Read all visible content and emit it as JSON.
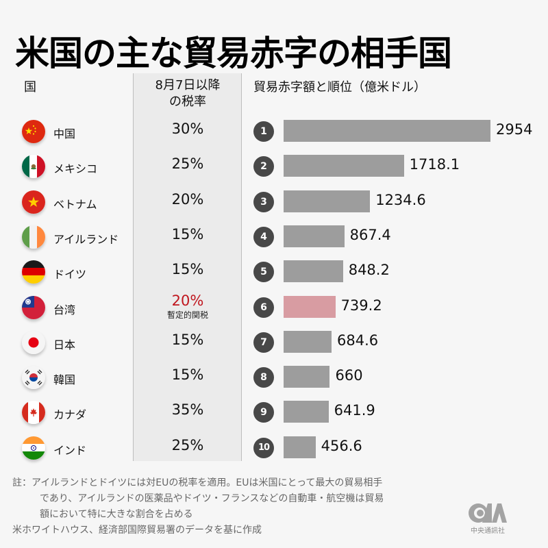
{
  "title": "米国の主な貿易赤字の相手国",
  "headers": {
    "country": "国",
    "tax_line1": "8月7日以降",
    "tax_line2": "の税率",
    "chart": "貿易赤字額と順位（億米ドル）"
  },
  "colors": {
    "bar": "#9d9d9d",
    "bar_highlight": "#d89ca2",
    "rate_highlight": "#c0161e",
    "rank_badge": "#484848"
  },
  "rows": [
    {
      "rank": "1",
      "country": "中国",
      "flag": "china-flag-icon",
      "rate": "30%",
      "value": "2954"
    },
    {
      "rank": "2",
      "country": "メキシコ",
      "flag": "mexico-flag-icon",
      "rate": "25%",
      "value": "1718.1"
    },
    {
      "rank": "3",
      "country": "ベトナム",
      "flag": "vietnam-flag-icon",
      "rate": "20%",
      "value": "1234.6"
    },
    {
      "rank": "4",
      "country": "アイルランド",
      "flag": "ireland-flag-icon",
      "rate": "15%",
      "value": "867.4"
    },
    {
      "rank": "5",
      "country": "ドイツ",
      "flag": "germany-flag-icon",
      "rate": "15%",
      "value": "848.2"
    },
    {
      "rank": "6",
      "country": "台湾",
      "flag": "taiwan-flag-icon",
      "rate": "20%",
      "rate_note": "暫定的関税",
      "value": "739.2",
      "highlight": true
    },
    {
      "rank": "7",
      "country": "日本",
      "flag": "japan-flag-icon",
      "rate": "15%",
      "value": "684.6"
    },
    {
      "rank": "8",
      "country": "韓国",
      "flag": "korea-flag-icon",
      "rate": "15%",
      "value": "660"
    },
    {
      "rank": "9",
      "country": "カナダ",
      "flag": "canada-flag-icon",
      "rate": "35%",
      "value": "641.9"
    },
    {
      "rank": "10",
      "country": "インド",
      "flag": "india-flag-icon",
      "rate": "25%",
      "value": "456.6"
    }
  ],
  "chart_data": {
    "type": "bar",
    "orientation": "horizontal",
    "title": "貿易赤字額と順位（億米ドル）",
    "xlabel": "",
    "ylabel": "",
    "categories": [
      "中国",
      "メキシコ",
      "ベトナム",
      "アイルランド",
      "ドイツ",
      "台湾",
      "日本",
      "韓国",
      "カナダ",
      "インド"
    ],
    "values": [
      2954,
      1718.1,
      1234.6,
      867.4,
      848.2,
      739.2,
      684.6,
      660,
      641.9,
      456.6
    ],
    "xlim": [
      0,
      2954
    ],
    "highlight_category": "台湾",
    "grid": false
  },
  "notes": {
    "line1": "註：アイルランドとドイツには対EUの税率を適用。EUは米国にとって最大の貿易相手",
    "line2": "であり、アイルランドの医薬品やドイツ・フランスなどの自動車・航空機は貿易",
    "line3": "額において特に大きな割合を占める",
    "source": "米ホワイトハウス、経済部国際貿易署のデータを基に作成"
  },
  "logo": {
    "text": "CNA",
    "caption": "中央通訊社"
  }
}
